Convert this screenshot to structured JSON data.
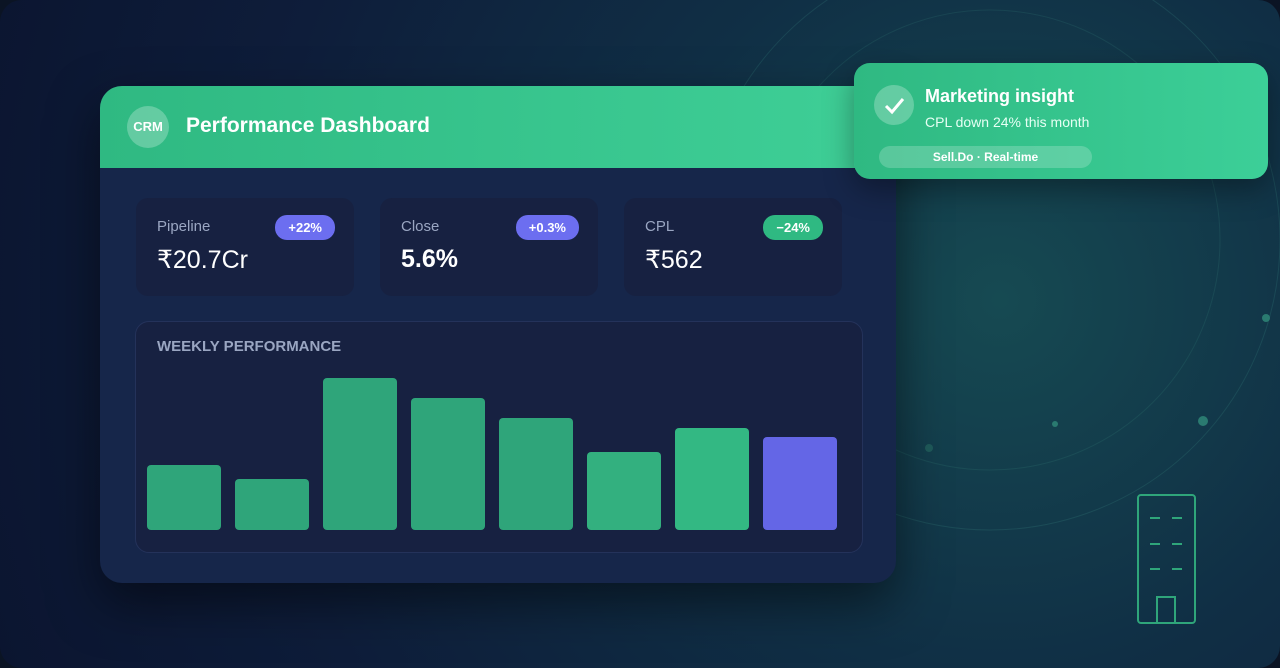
{
  "header": {
    "logo": "CRM",
    "title": "Performance Dashboard"
  },
  "kpis": [
    {
      "label": "Pipeline",
      "value": "₹20.7Cr",
      "badge": "+22%",
      "badge_color": "#6c6ef0"
    },
    {
      "label": "Close",
      "value": "5.6%",
      "badge": "+0.3%",
      "badge_color": "#6c6ef0"
    },
    {
      "label": "CPL",
      "value": "₹562",
      "badge": "−24%",
      "badge_color": "#2fb982"
    }
  ],
  "chart_data": {
    "type": "bar",
    "title": "WEEKLY PERFORMANCE",
    "values": [
      65,
      51,
      152,
      132,
      112,
      78,
      102,
      93
    ],
    "colors": [
      "#2fa57a",
      "#2fa57a",
      "#2fa57a",
      "#2fa57a",
      "#2fa57a",
      "#33b07f",
      "#33b883",
      "#6466e6"
    ]
  },
  "notification": {
    "title": "Marketing insight",
    "text": "CPL down 24% this month",
    "tag": "Sell.Do · Real-time"
  }
}
